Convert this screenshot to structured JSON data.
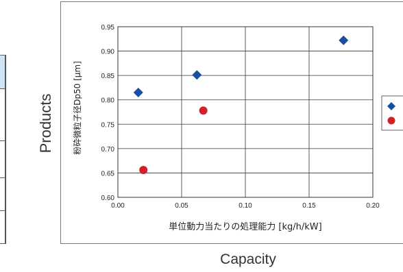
{
  "outer": {
    "ylabel": "Products",
    "xlabel": "Capacity"
  },
  "chart_data": {
    "type": "scatter",
    "title": "",
    "xlabel": "単位動力当たりの処理能力 [kg/h/kW]",
    "ylabel": "粉砕微粒子径Dp50 [μm]",
    "xlim": [
      0.0,
      0.2
    ],
    "ylim": [
      0.6,
      0.95
    ],
    "x_ticks": [
      "0.00",
      "0.05",
      "0.10",
      "0.15",
      "0.20"
    ],
    "y_ticks": [
      "0.60",
      "0.65",
      "0.70",
      "0.75",
      "0.80",
      "0.85",
      "0.90",
      "0.95"
    ],
    "grid": true,
    "legend": "right (cut off)",
    "series": [
      {
        "marker": "diamond",
        "color": "#1a4fa0",
        "points": [
          [
            0.016,
            0.815
          ],
          [
            0.062,
            0.851
          ],
          [
            0.177,
            0.922
          ]
        ]
      },
      {
        "marker": "circle",
        "color": "#d42027",
        "points": [
          [
            0.02,
            0.656
          ],
          [
            0.067,
            0.778
          ]
        ]
      }
    ]
  }
}
